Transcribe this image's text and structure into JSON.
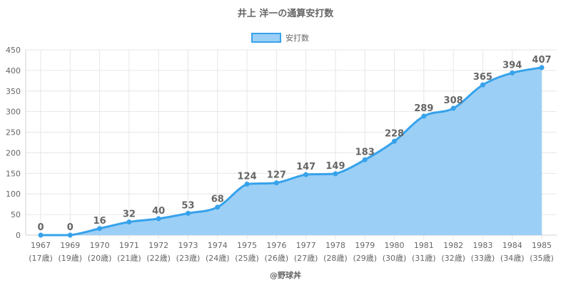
{
  "chart_data": {
    "type": "area",
    "title": "井上 洋一の通算安打数",
    "legend": {
      "label": "安打数",
      "position": "top-center"
    },
    "categories": [
      "1967",
      "1969",
      "1970",
      "1971",
      "1972",
      "1973",
      "1974",
      "1975",
      "1976",
      "1977",
      "1978",
      "1979",
      "1980",
      "1981",
      "1982",
      "1983",
      "1984",
      "1985"
    ],
    "ages": [
      "(17歳)",
      "(19歳)",
      "(20歳)",
      "(21歳)",
      "(22歳)",
      "(23歳)",
      "(24歳)",
      "(25歳)",
      "(26歳)",
      "(27歳)",
      "(28歳)",
      "(29歳)",
      "(30歳)",
      "(31歳)",
      "(32歳)",
      "(33歳)",
      "(34歳)",
      "(35歳)"
    ],
    "series": [
      {
        "name": "安打数",
        "values": [
          0,
          0,
          16,
          32,
          40,
          53,
          68,
          124,
          127,
          147,
          149,
          183,
          228,
          289,
          308,
          365,
          394,
          407
        ]
      }
    ],
    "ylim": [
      0,
      450
    ],
    "yticks": [
      0,
      50,
      100,
      150,
      200,
      250,
      300,
      350,
      400,
      450
    ],
    "grid": true,
    "colors": {
      "line": "#36a2eb",
      "fill": "#9ccff5",
      "grid": "#e6e6e6",
      "text": "#666666"
    }
  },
  "footer": "@野球丼"
}
